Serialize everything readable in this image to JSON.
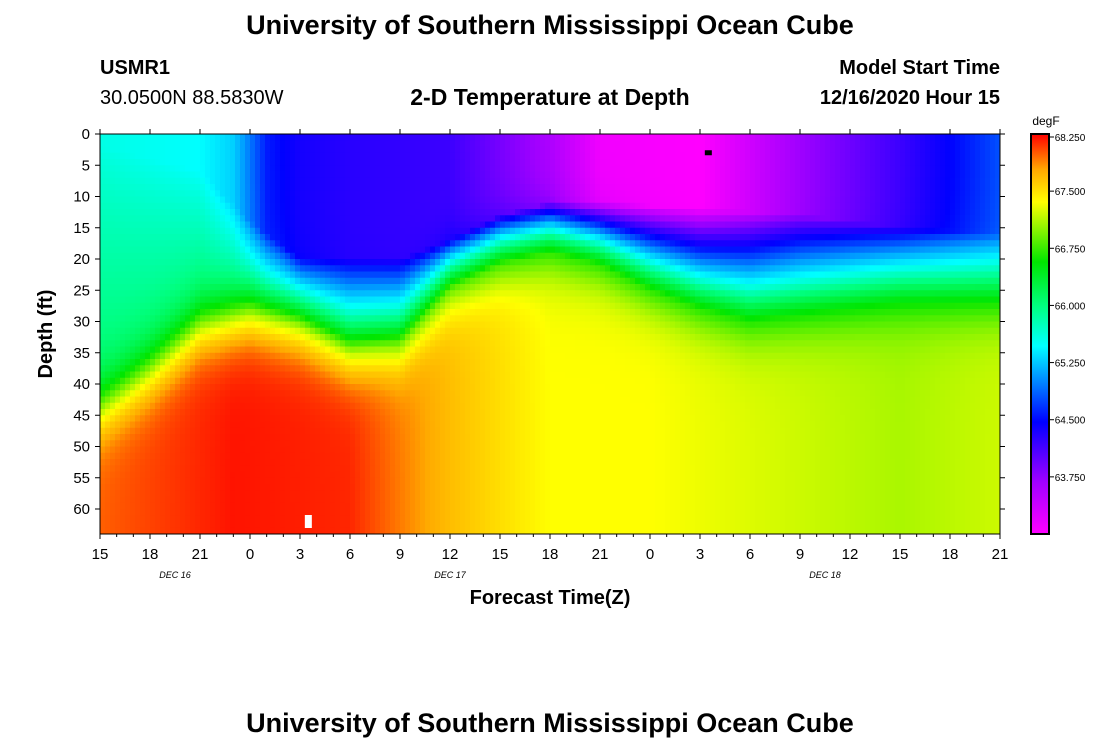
{
  "page": {
    "title_top": "University of Southern Mississippi Ocean Cube",
    "title_bottom": "University of Southern Mississippi Ocean Cube",
    "station": "USMR1",
    "coordinates": "30.0500N 88.5830W",
    "plot_title": "2-D Temperature at Depth",
    "start_label": "Model Start Time",
    "start_value": "12/16/2020 Hour 15"
  },
  "chart_data": {
    "type": "heatmap",
    "title": "2-D Temperature at Depth",
    "xlabel": "Forecast Time(Z)",
    "ylabel": "Depth (ft)",
    "x_hours_range": [
      0,
      54
    ],
    "y_range": [
      0,
      64
    ],
    "x_tick_labels": [
      "15",
      "18",
      "21",
      "0",
      "3",
      "6",
      "9",
      "12",
      "15",
      "18",
      "21",
      "0",
      "3",
      "6",
      "9",
      "12",
      "15",
      "18",
      "21"
    ],
    "y_ticks": [
      0,
      5,
      10,
      15,
      20,
      25,
      30,
      35,
      40,
      45,
      50,
      55,
      60
    ],
    "date_labels": [
      {
        "text": "DEC 16",
        "hour": 4.5
      },
      {
        "text": "DEC 17",
        "hour": 21
      },
      {
        "text": "DEC 18",
        "hour": 43.5
      }
    ],
    "colorbar": {
      "unit": "degF",
      "min": 63.0,
      "max": 68.25,
      "tick_labels": [
        "68.250",
        "67.500",
        "66.750",
        "66.000",
        "65.250",
        "64.500",
        "63.750"
      ],
      "tick_values": [
        68.25,
        67.5,
        66.75,
        66.0,
        65.25,
        64.5,
        63.75
      ]
    },
    "field_description": "Cold layer (63-65 degF) near surface from hour 15 onward, warm layer (67.5-68.25 degF) at depth 35-64 ft",
    "markers": [
      {
        "hour": 36.5,
        "depth": 3,
        "color": "#000000"
      },
      {
        "hour": 12.5,
        "depth": 62,
        "color": "#ffffff"
      }
    ]
  }
}
